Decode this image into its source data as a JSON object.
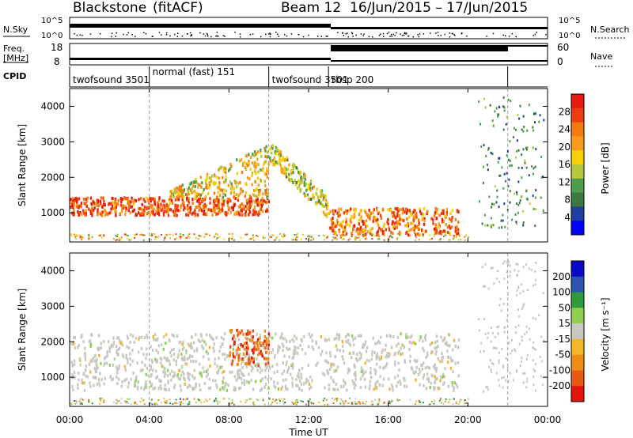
{
  "header": {
    "station": "Blackstone",
    "product": "(fitACF)",
    "beam": "Beam 12",
    "date_range": "16/Jun/2015 – 17/Jun/2015"
  },
  "status_panels": {
    "nsky_label": "N.Sky",
    "nsearch_label": "N.Search",
    "freq_label_1": "Freq.",
    "freq_label_2": "[MHz]",
    "nave_label": "Nave",
    "cpid_label": "CPID",
    "nsky_ticks": [
      "10^5",
      "10^0"
    ],
    "nsearch_ticks": [
      "10^5",
      "10^0"
    ],
    "freq_ticks": [
      "18",
      "8"
    ],
    "nave_ticks": [
      "60",
      "0"
    ]
  },
  "chart_data": {
    "type": "heatmap",
    "x_axis": {
      "label": "Time UT",
      "ticks": [
        "00:00",
        "04:00",
        "08:00",
        "12:00",
        "16:00",
        "20:00",
        "00:00"
      ],
      "range_hours": [
        0,
        24
      ]
    },
    "cpid_segments": [
      {
        "name": "twofsound 3501",
        "start_h": 0,
        "end_h": 4.0
      },
      {
        "name": "normal (fast) 151",
        "start_h": 4.0,
        "end_h": 10.0
      },
      {
        "name": "twofsound 3501",
        "start_h": 10.0,
        "end_h": 22.0
      },
      {
        "name": "rbsp 200",
        "start_h": 13.0,
        "end_h": 22.0
      }
    ],
    "panels": [
      {
        "id": "power",
        "ylabel": "Slant Range [km]",
        "yticks": [
          "1000",
          "2000",
          "3000",
          "4000"
        ],
        "ylim": [
          180,
          4500
        ],
        "colorbar": {
          "label": "Power [dB]",
          "tick_labels": [
            "4",
            "8",
            "12",
            "16",
            "20",
            "24",
            "28"
          ],
          "range": [
            0,
            32
          ],
          "colors": [
            "#0000ff",
            "#1e3fa0",
            "#3a7a40",
            "#4c9e4c",
            "#b6c83a",
            "#f6d000",
            "#fb9b1b",
            "#f57a0e",
            "#ee3b0f",
            "#e41a0c"
          ]
        }
      },
      {
        "id": "velocity",
        "ylabel": "Slant Range [km]",
        "yticks": [
          "1000",
          "2000",
          "3000",
          "4000"
        ],
        "ylim": [
          180,
          4500
        ],
        "colorbar": {
          "label": "Velocity [m s⁻¹]",
          "tick_labels": [
            "200",
            "100",
            "50",
            "15",
            "-15",
            "-50",
            "-100",
            "-200"
          ],
          "range": [
            -250,
            250
          ],
          "colors": [
            "#0a0ac8",
            "#2a56b0",
            "#2f9a3a",
            "#8fd14e",
            "#c8c8c0",
            "#f2b628",
            "#f08c14",
            "#ea5814",
            "#e2140c"
          ]
        }
      }
    ],
    "echo_regions": [
      {
        "panel": "power",
        "kind": "ground_scatter_band",
        "from_h": 0,
        "to_h": 10,
        "range_km": [
          900,
          1400
        ],
        "value_db": 26
      },
      {
        "panel": "power",
        "kind": "rising_patch",
        "from_h": 5,
        "to_h": 10,
        "range_km": [
          1400,
          2700
        ],
        "value_db": 18
      },
      {
        "panel": "power",
        "kind": "descending_band",
        "from_h": 10,
        "to_h": 13,
        "range_km": [
          800,
          3000
        ],
        "value_db": 16
      },
      {
        "panel": "power",
        "kind": "near_range_band",
        "from_h": 13,
        "to_h": 19.5,
        "range_km": [
          350,
          1100
        ],
        "value_db": 24
      },
      {
        "panel": "velocity",
        "kind": "ground_scatter",
        "from_h": 0,
        "to_h": 19.5,
        "range_km": [
          600,
          2200
        ],
        "value_ms": 0
      },
      {
        "panel": "velocity",
        "kind": "ionospheric_patch",
        "from_h": 8,
        "to_h": 10,
        "range_km": [
          1300,
          2300
        ],
        "value_ms": -150
      }
    ]
  }
}
